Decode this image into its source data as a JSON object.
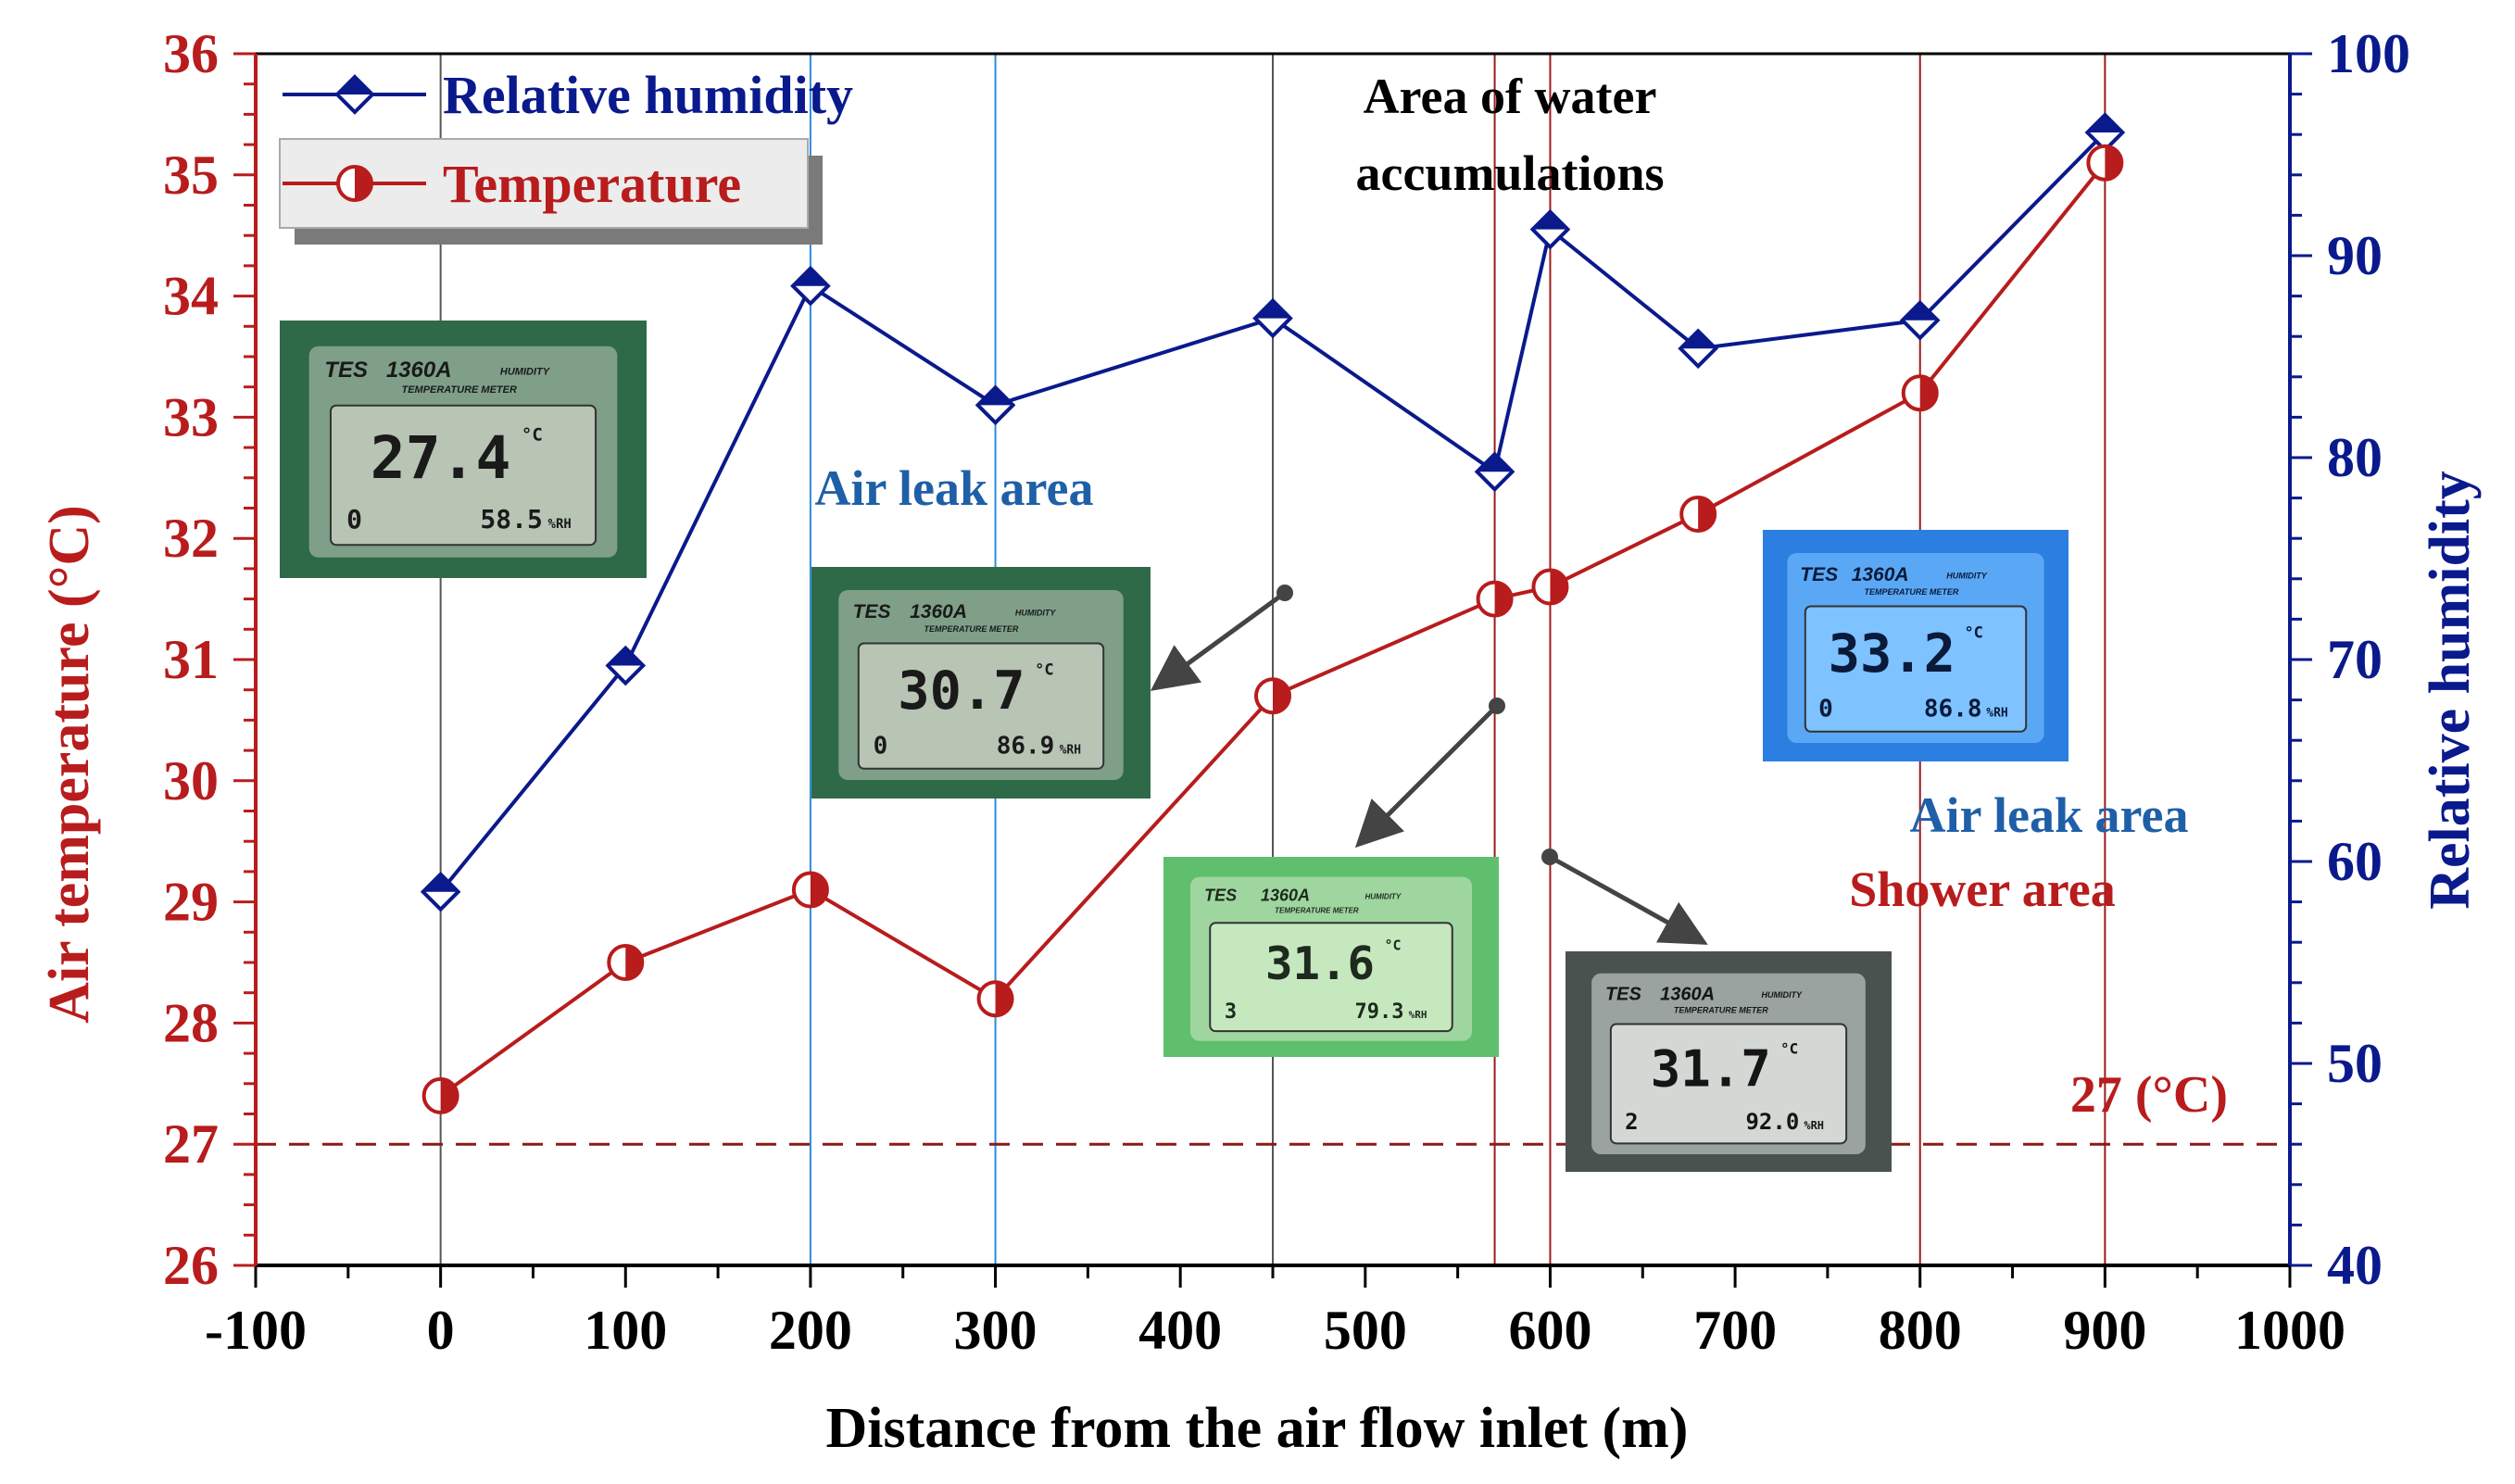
{
  "chart_data": {
    "type": "line",
    "xlabel": "Distance from the air flow inlet (m)",
    "ylabel_left": "Air temperature (°C)",
    "ylabel_right": "Relative humidity",
    "xlim": [
      -100,
      1000
    ],
    "ylim_left": [
      26,
      36
    ],
    "ylim_right": [
      40,
      100
    ],
    "x_ticks": [
      -100,
      0,
      100,
      200,
      300,
      400,
      500,
      600,
      700,
      800,
      900,
      1000
    ],
    "y_left_ticks": [
      26,
      27,
      28,
      29,
      30,
      31,
      32,
      33,
      34,
      35,
      36
    ],
    "y_right_ticks": [
      40,
      50,
      60,
      70,
      80,
      90,
      100
    ],
    "x": [
      0,
      100,
      200,
      300,
      450,
      570,
      600,
      680,
      800,
      900
    ],
    "series": [
      {
        "name": "Relative humidity",
        "axis": "right",
        "marker": "diamond",
        "color": "#0a1a8c",
        "values": [
          58.5,
          69.7,
          88.5,
          82.6,
          86.9,
          79.3,
          91.3,
          85.4,
          86.8,
          96.1
        ]
      },
      {
        "name": "Temperature",
        "axis": "left",
        "marker": "half-circle",
        "color": "#b81c1c",
        "values": [
          27.4,
          28.5,
          29.1,
          28.2,
          30.7,
          31.5,
          31.6,
          32.2,
          33.2,
          35.1
        ]
      }
    ],
    "reference_line": {
      "y": 27,
      "label": "27 (°C)",
      "color": "#8b1a1a"
    },
    "vertical_lines": [
      {
        "x": 0,
        "color": "#555555"
      },
      {
        "x": 200,
        "color": "#2b8be0"
      },
      {
        "x": 300,
        "color": "#2b8be0"
      },
      {
        "x": 450,
        "color": "#555555"
      },
      {
        "x": 570,
        "color": "#9b1c1c"
      },
      {
        "x": 600,
        "color": "#9b1c1c"
      },
      {
        "x": 800,
        "color": "#9b1c1c"
      },
      {
        "x": 900,
        "color": "#9b1c1c"
      }
    ],
    "annotations": [
      {
        "text": "Air leak area",
        "color": "#1f5fa8"
      },
      {
        "text": "Area of water",
        "color": "#000000"
      },
      {
        "text": "accumulations",
        "color": "#000000"
      },
      {
        "text": "Air leak area",
        "color": "#1f5fa8"
      },
      {
        "text": "Shower area",
        "color": "#b81c1c"
      }
    ],
    "legend": {
      "placement": "top-left"
    },
    "grid": false
  },
  "meter_photos": [
    {
      "brand": "TES",
      "model": "1360A",
      "line1": "HUMIDITY",
      "line2": "TEMPERATURE METER",
      "temp": "27.4",
      "rh": "58.5",
      "mode": "0",
      "unit_c": "°C",
      "unit_rh": "%RH",
      "theme": "green"
    },
    {
      "brand": "TES",
      "model": "1360A",
      "line1": "HUMIDITY",
      "line2": "TEMPERATURE METER",
      "temp": "30.7",
      "rh": "86.9",
      "mode": "0",
      "unit_c": "°C",
      "unit_rh": "%RH",
      "theme": "green"
    },
    {
      "brand": "TES",
      "model": "1360A",
      "line1": "HUMIDITY",
      "line2": "TEMPERATURE METER",
      "temp": "31.6",
      "rh": "79.3",
      "mode": "3",
      "unit_c": "°C",
      "unit_rh": "%RH",
      "theme": "lightgreen"
    },
    {
      "brand": "TES",
      "model": "1360A",
      "line1": "HUMIDITY",
      "line2": "TEMPERATURE METER",
      "temp": "31.7",
      "rh": "92.0",
      "mode": "2",
      "unit_c": "°C",
      "unit_rh": "%RH",
      "theme": "grey"
    },
    {
      "brand": "TES",
      "model": "1360A",
      "line1": "HUMIDITY",
      "line2": "TEMPERATURE METER",
      "temp": "33.2",
      "rh": "86.8",
      "mode": "0",
      "unit_c": "°C",
      "unit_rh": "%RH",
      "theme": "blue"
    }
  ],
  "colors": {
    "left_axis": "#b81c1c",
    "right_axis": "#0a1a8c",
    "arrow": "#444444"
  }
}
